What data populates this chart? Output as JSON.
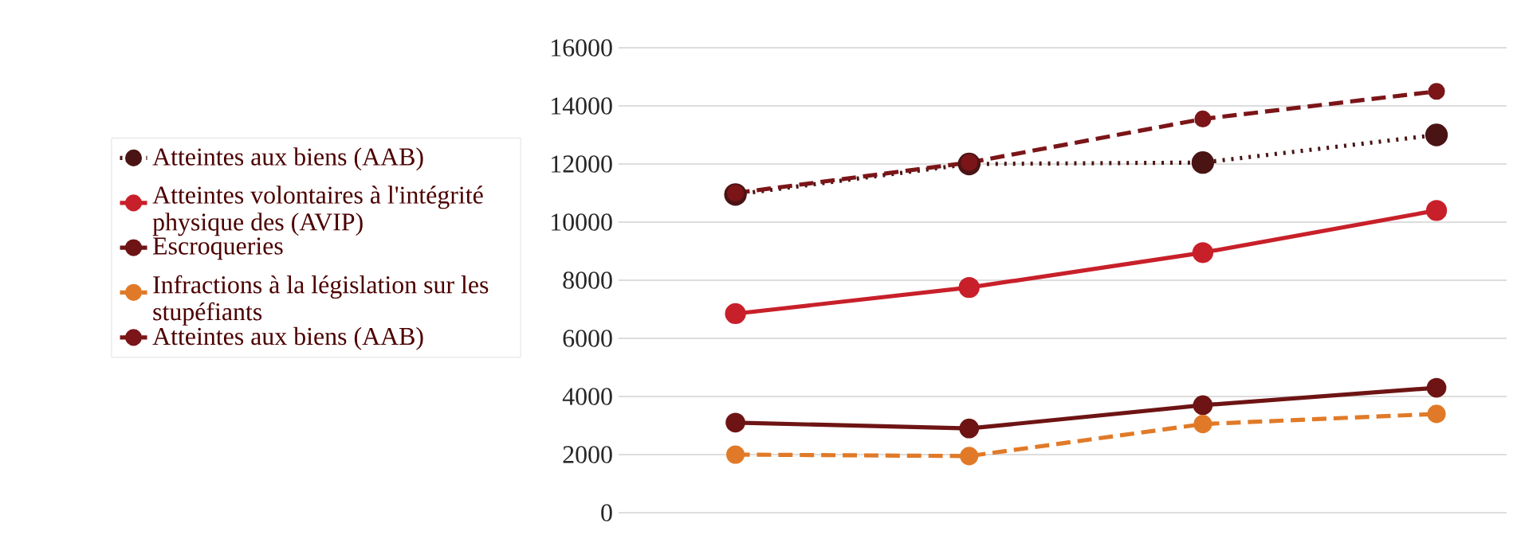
{
  "chart_data": {
    "type": "line",
    "categories": [
      null,
      null,
      null,
      null
    ],
    "ylim": [
      0,
      16000
    ],
    "yticks": [
      0,
      2000,
      4000,
      6000,
      8000,
      10000,
      12000,
      14000,
      16000
    ],
    "grid": "y",
    "legend": "left",
    "marker": "circle",
    "series": [
      {
        "name": "Atteintes aux biens (AAB)",
        "color": "#4a1414",
        "line_style": "dotted",
        "values": [
          10950,
          12000,
          12050,
          13000
        ]
      },
      {
        "name": "Atteintes volontaires à l'intégrité physique des (AVIP)",
        "color": "#c8202a",
        "line_style": "solid",
        "values": [
          6850,
          7750,
          8950,
          10400
        ]
      },
      {
        "name": "Escroqueries",
        "color": "#6e1414",
        "line_style": "solid",
        "values": [
          3100,
          2900,
          3700,
          4300
        ]
      },
      {
        "name": "Infractions à la législation sur les stupéfiants",
        "color": "#e07a28",
        "line_style": "dashed",
        "values": [
          2000,
          1950,
          3050,
          3400
        ]
      },
      {
        "name": "Atteintes aux biens (AAB)",
        "color": "#7b1518",
        "line_style": "dashed",
        "values": [
          11000,
          12050,
          13550,
          14500
        ]
      }
    ]
  }
}
